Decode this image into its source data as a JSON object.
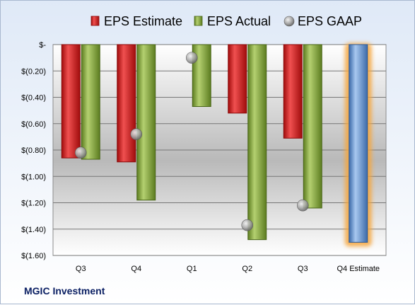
{
  "company": "MGIC Investment",
  "chart_data": {
    "type": "bar",
    "categories": [
      "Q3",
      "Q4",
      "Q1",
      "Q2",
      "Q3",
      "Q4 Estimate"
    ],
    "series": [
      {
        "name": "EPS Estimate",
        "type": "bar",
        "color": "#e02020",
        "values": [
          -0.86,
          -0.89,
          null,
          -0.52,
          -0.71,
          null
        ]
      },
      {
        "name": "EPS Actual",
        "type": "bar",
        "color": "#8cb040",
        "values": [
          -0.87,
          -1.18,
          -0.47,
          -1.48,
          -1.24,
          null
        ]
      },
      {
        "name": "EPS GAAP",
        "type": "marker",
        "color": "#9a9a9a",
        "values": [
          -0.82,
          -0.68,
          -0.1,
          -1.37,
          -1.22,
          null
        ]
      },
      {
        "name": "Q4 Estimate",
        "type": "bar",
        "color": "#6f9fdc",
        "values": [
          null,
          null,
          null,
          null,
          null,
          -1.5
        ]
      }
    ],
    "ylim": [
      -1.6,
      0
    ],
    "yticks": [
      "$-",
      "$(0.20)",
      "$(0.40)",
      "$(0.60)",
      "$(0.80)",
      "$(1.00)",
      "$(1.20)",
      "$(1.40)",
      "$(1.60)"
    ],
    "legend_position": "top",
    "grid": true
  }
}
